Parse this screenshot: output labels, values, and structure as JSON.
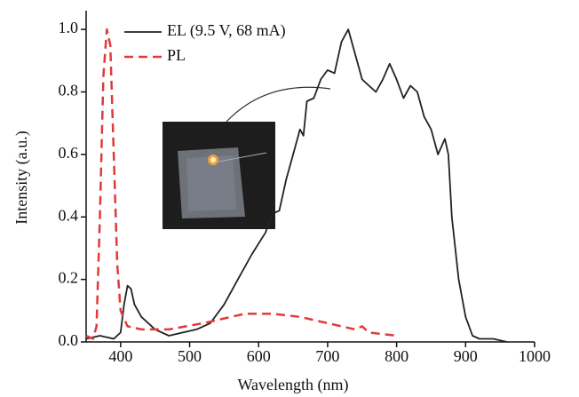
{
  "chart_data": {
    "type": "line",
    "xlabel": "Wavelength (nm)",
    "ylabel": "Intensity (a.u.)",
    "xlim": [
      350,
      1000
    ],
    "xticks": [
      400,
      500,
      600,
      700,
      800,
      900,
      1000
    ],
    "ylim": [
      0,
      1.06
    ],
    "yticks": [
      {
        "value": 0,
        "label": "0.0"
      },
      0.2,
      0.4,
      0.6,
      0.8,
      {
        "value": 1,
        "label": "1.0"
      }
    ],
    "legend": "upper left",
    "series": [
      {
        "name": "EL (9.5 V, 68 mA)",
        "color": "#222222",
        "dash": false,
        "x": [
          350,
          370,
          390,
          400,
          405,
          410,
          415,
          420,
          430,
          450,
          470,
          490,
          510,
          530,
          550,
          570,
          590,
          610,
          620,
          630,
          640,
          650,
          660,
          665,
          670,
          680,
          690,
          700,
          710,
          720,
          730,
          740,
          750,
          760,
          770,
          780,
          790,
          800,
          810,
          820,
          830,
          840,
          850,
          860,
          870,
          875,
          880,
          890,
          900,
          910,
          920,
          940,
          960
        ],
        "values": [
          0.01,
          0.02,
          0.01,
          0.03,
          0.12,
          0.18,
          0.17,
          0.12,
          0.08,
          0.04,
          0.02,
          0.03,
          0.04,
          0.06,
          0.12,
          0.2,
          0.28,
          0.35,
          0.41,
          0.42,
          0.52,
          0.6,
          0.68,
          0.66,
          0.77,
          0.78,
          0.84,
          0.87,
          0.86,
          0.96,
          1.0,
          0.92,
          0.84,
          0.82,
          0.8,
          0.84,
          0.89,
          0.84,
          0.78,
          0.82,
          0.8,
          0.72,
          0.68,
          0.6,
          0.65,
          0.6,
          0.4,
          0.2,
          0.08,
          0.02,
          0.01,
          0.01,
          0.0
        ]
      },
      {
        "name": "PL",
        "color": "#e03a3a",
        "dash": true,
        "x": [
          350,
          360,
          365,
          370,
          375,
          380,
          385,
          390,
          395,
          400,
          410,
          430,
          470,
          520,
          560,
          580,
          620,
          660,
          700,
          740,
          750,
          760,
          800
        ],
        "values": [
          0.02,
          0.01,
          0.05,
          0.4,
          0.85,
          1.0,
          0.95,
          0.6,
          0.25,
          0.1,
          0.05,
          0.04,
          0.04,
          0.06,
          0.08,
          0.09,
          0.09,
          0.08,
          0.06,
          0.04,
          0.05,
          0.03,
          0.02
        ]
      }
    ]
  }
}
